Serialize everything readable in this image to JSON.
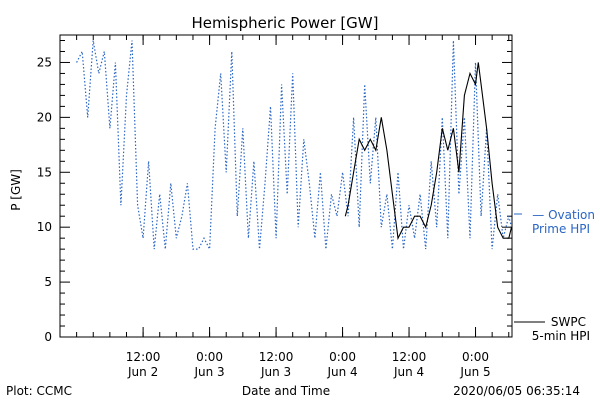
{
  "chart_data": {
    "type": "line",
    "title": "Hemispheric Power [GW]",
    "ylabel": "P [GW]",
    "xlabel": "Date and Time",
    "ylim": [
      0,
      27.5
    ],
    "xlim": [
      "2020-06-01T21:00",
      "2020-06-05T06:35"
    ],
    "yticks": [
      0,
      5,
      10,
      15,
      20,
      25
    ],
    "xticks": [
      {
        "time": "2020-06-02T12:00",
        "top": "12:00",
        "bottom": "Jun 2"
      },
      {
        "time": "2020-06-03T00:00",
        "top": "0:00",
        "bottom": "Jun 3"
      },
      {
        "time": "2020-06-03T12:00",
        "top": "12:00",
        "bottom": "Jun 3"
      },
      {
        "time": "2020-06-04T00:00",
        "top": "0:00",
        "bottom": "Jun 4"
      },
      {
        "time": "2020-06-04T12:00",
        "top": "12:00",
        "bottom": "Jun 4"
      },
      {
        "time": "2020-06-05T00:00",
        "top": "0:00",
        "bottom": "Jun 5"
      }
    ],
    "series": [
      {
        "name": "— Ovation\nPrime HPI",
        "color": "#2a66c4",
        "style": "dotted",
        "points": [
          [
            "2020-06-02T00:00",
            25
          ],
          [
            "2020-06-02T01:00",
            26
          ],
          [
            "2020-06-02T02:00",
            20
          ],
          [
            "2020-06-02T03:00",
            27
          ],
          [
            "2020-06-02T04:00",
            24
          ],
          [
            "2020-06-02T05:00",
            26
          ],
          [
            "2020-06-02T06:00",
            19
          ],
          [
            "2020-06-02T07:00",
            25
          ],
          [
            "2020-06-02T08:00",
            12
          ],
          [
            "2020-06-02T09:00",
            22
          ],
          [
            "2020-06-02T10:00",
            27
          ],
          [
            "2020-06-02T11:00",
            12
          ],
          [
            "2020-06-02T12:00",
            9
          ],
          [
            "2020-06-02T13:00",
            16
          ],
          [
            "2020-06-02T14:00",
            8
          ],
          [
            "2020-06-02T15:00",
            13
          ],
          [
            "2020-06-02T16:00",
            8
          ],
          [
            "2020-06-02T17:00",
            14
          ],
          [
            "2020-06-02T18:00",
            9
          ],
          [
            "2020-06-02T19:00",
            11
          ],
          [
            "2020-06-02T20:00",
            14
          ],
          [
            "2020-06-02T21:00",
            8
          ],
          [
            "2020-06-02T22:00",
            8
          ],
          [
            "2020-06-02T23:00",
            9
          ],
          [
            "2020-06-03T00:00",
            8
          ],
          [
            "2020-06-03T01:00",
            19
          ],
          [
            "2020-06-03T02:00",
            24
          ],
          [
            "2020-06-03T03:00",
            15
          ],
          [
            "2020-06-03T04:00",
            26
          ],
          [
            "2020-06-03T05:00",
            11
          ],
          [
            "2020-06-03T06:00",
            19
          ],
          [
            "2020-06-03T07:00",
            9
          ],
          [
            "2020-06-03T08:00",
            16
          ],
          [
            "2020-06-03T09:00",
            8
          ],
          [
            "2020-06-03T10:00",
            14
          ],
          [
            "2020-06-03T11:00",
            21
          ],
          [
            "2020-06-03T12:00",
            9
          ],
          [
            "2020-06-03T13:00",
            23
          ],
          [
            "2020-06-03T14:00",
            13
          ],
          [
            "2020-06-03T15:00",
            24
          ],
          [
            "2020-06-03T16:00",
            10
          ],
          [
            "2020-06-03T17:00",
            18
          ],
          [
            "2020-06-03T18:00",
            14
          ],
          [
            "2020-06-03T19:00",
            9
          ],
          [
            "2020-06-03T20:00",
            15
          ],
          [
            "2020-06-03T21:00",
            8
          ],
          [
            "2020-06-03T22:00",
            13
          ],
          [
            "2020-06-03T23:00",
            11
          ],
          [
            "2020-06-04T00:00",
            15
          ],
          [
            "2020-06-04T01:00",
            11
          ],
          [
            "2020-06-04T02:00",
            20
          ],
          [
            "2020-06-04T03:00",
            10
          ],
          [
            "2020-06-04T04:00",
            23
          ],
          [
            "2020-06-04T05:00",
            14
          ],
          [
            "2020-06-04T06:00",
            20
          ],
          [
            "2020-06-04T07:00",
            10
          ],
          [
            "2020-06-04T08:00",
            13
          ],
          [
            "2020-06-04T09:00",
            8
          ],
          [
            "2020-06-04T10:00",
            15
          ],
          [
            "2020-06-04T11:00",
            8
          ],
          [
            "2020-06-04T12:00",
            12
          ],
          [
            "2020-06-04T13:00",
            9
          ],
          [
            "2020-06-04T14:00",
            13
          ],
          [
            "2020-06-04T15:00",
            8
          ],
          [
            "2020-06-04T16:00",
            16
          ],
          [
            "2020-06-04T17:00",
            10
          ],
          [
            "2020-06-04T18:00",
            20
          ],
          [
            "2020-06-04T19:00",
            9
          ],
          [
            "2020-06-04T20:00",
            27
          ],
          [
            "2020-06-04T21:00",
            13
          ],
          [
            "2020-06-04T22:00",
            20
          ],
          [
            "2020-06-04T23:00",
            9
          ],
          [
            "2020-06-05T00:00",
            25
          ],
          [
            "2020-06-05T01:00",
            11
          ],
          [
            "2020-06-05T02:00",
            19
          ],
          [
            "2020-06-05T03:00",
            8
          ],
          [
            "2020-06-05T04:00",
            13
          ],
          [
            "2020-06-05T05:00",
            9
          ],
          [
            "2020-06-05T06:00",
            11
          ],
          [
            "2020-06-05T06:30",
            10
          ]
        ]
      },
      {
        "name": "SWPC\n5-min HPI",
        "color": "#000000",
        "style": "solid",
        "points": [
          [
            "2020-06-04T00:30",
            11
          ],
          [
            "2020-06-04T01:00",
            12
          ],
          [
            "2020-06-04T02:00",
            15
          ],
          [
            "2020-06-04T03:00",
            18
          ],
          [
            "2020-06-04T04:00",
            17
          ],
          [
            "2020-06-04T05:00",
            18
          ],
          [
            "2020-06-04T06:00",
            17
          ],
          [
            "2020-06-04T07:00",
            20
          ],
          [
            "2020-06-04T08:00",
            17
          ],
          [
            "2020-06-04T09:00",
            13
          ],
          [
            "2020-06-04T10:00",
            9
          ],
          [
            "2020-06-04T11:00",
            10
          ],
          [
            "2020-06-04T12:00",
            10
          ],
          [
            "2020-06-04T13:00",
            11
          ],
          [
            "2020-06-04T14:00",
            11
          ],
          [
            "2020-06-04T15:00",
            10
          ],
          [
            "2020-06-04T16:00",
            12
          ],
          [
            "2020-06-04T17:00",
            15
          ],
          [
            "2020-06-04T18:00",
            19
          ],
          [
            "2020-06-04T19:00",
            17
          ],
          [
            "2020-06-04T20:00",
            19
          ],
          [
            "2020-06-04T21:00",
            15
          ],
          [
            "2020-06-04T22:00",
            22
          ],
          [
            "2020-06-04T23:00",
            24
          ],
          [
            "2020-06-05T00:00",
            23
          ],
          [
            "2020-06-05T00:30",
            25
          ],
          [
            "2020-06-05T01:00",
            23
          ],
          [
            "2020-06-05T02:00",
            19
          ],
          [
            "2020-06-05T03:00",
            14
          ],
          [
            "2020-06-05T04:00",
            10
          ],
          [
            "2020-06-05T05:00",
            9
          ],
          [
            "2020-06-05T06:00",
            9
          ],
          [
            "2020-06-05T06:30",
            10
          ]
        ]
      }
    ],
    "footer": {
      "left": "Plot: CCMC",
      "right": "2020/06/05 06:35:14"
    }
  }
}
